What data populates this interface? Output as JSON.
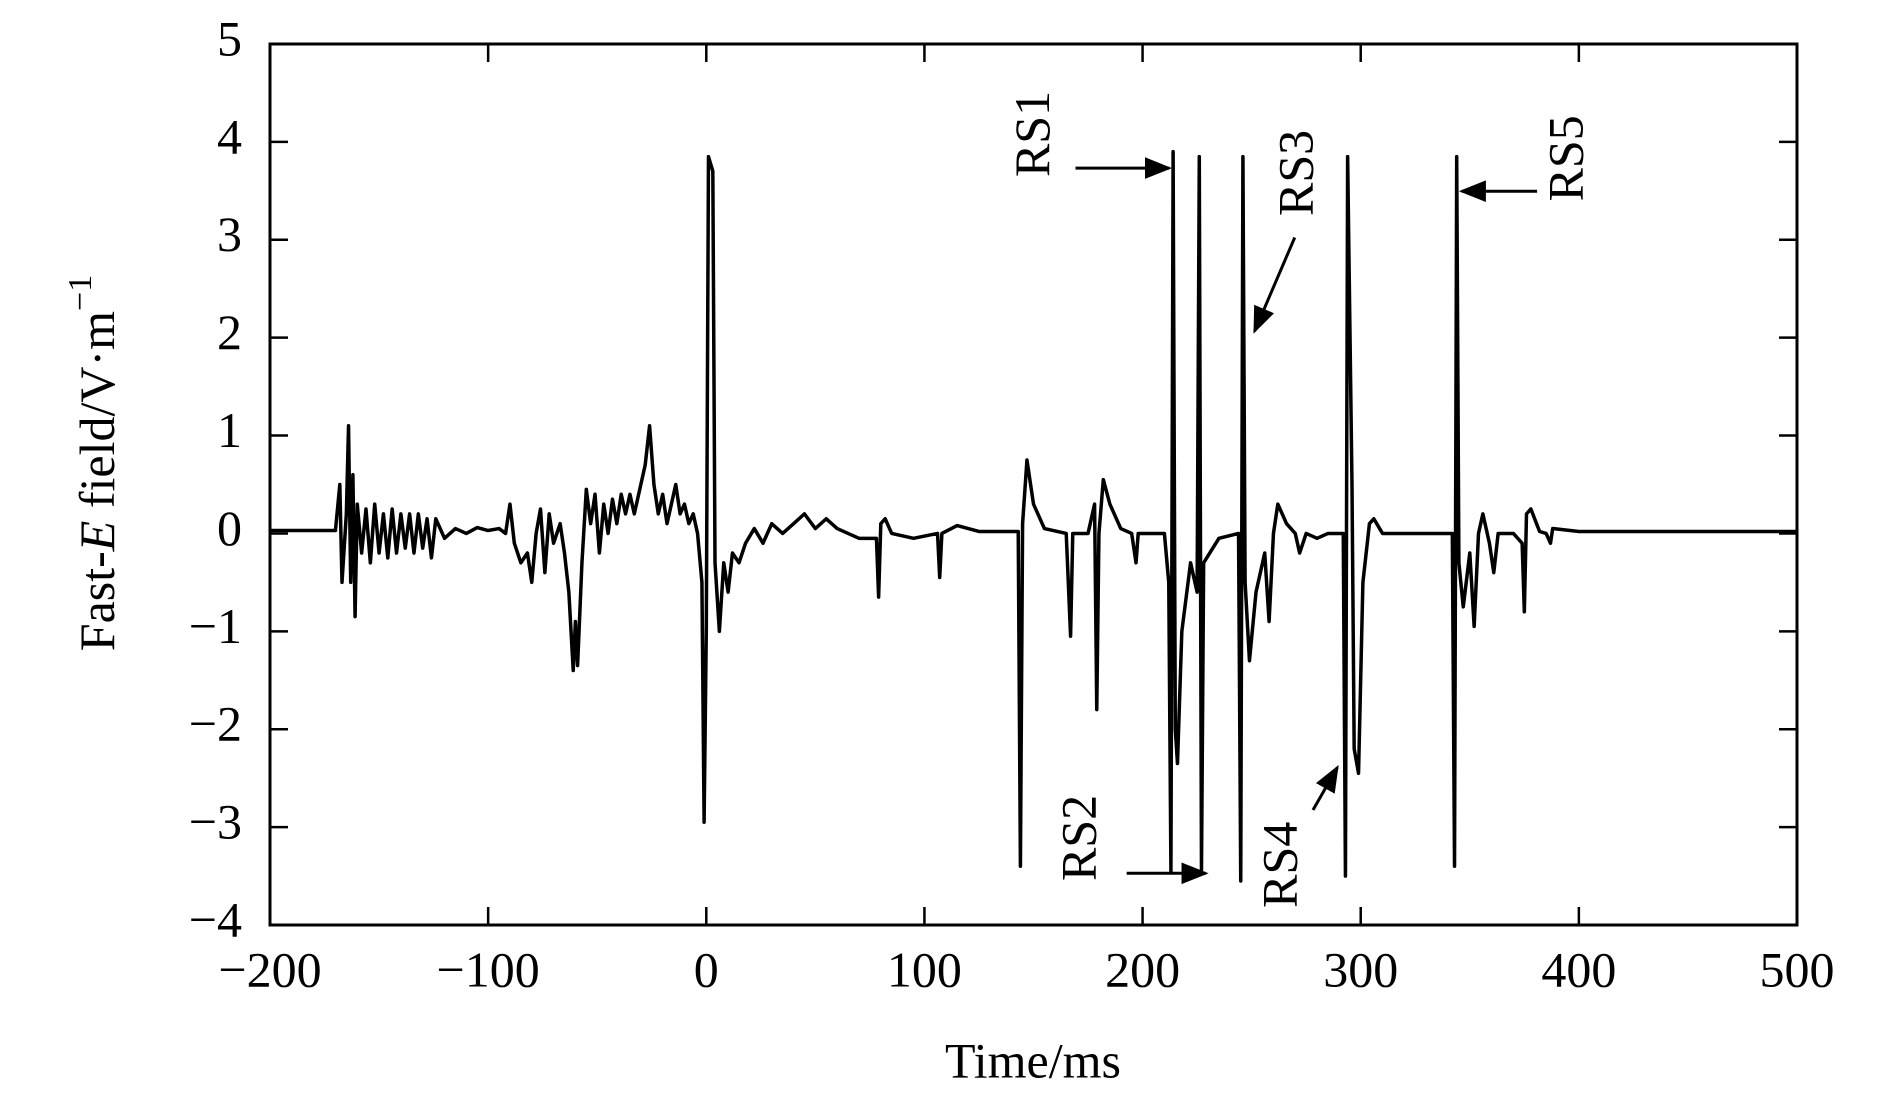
{
  "chart_data": {
    "type": "line",
    "xlabel": "Time/ms",
    "ylabel": [
      "Fast-",
      "E",
      " field/V·m",
      "−1"
    ],
    "color": "#000000",
    "grid": false,
    "xlim": [
      -200,
      500
    ],
    "ylim": [
      -4,
      5
    ],
    "xticks": [
      {
        "value": -200,
        "label": "−200"
      },
      {
        "value": -100,
        "label": "−100"
      },
      0,
      100,
      200,
      300,
      400,
      500
    ],
    "yticks": [
      {
        "value": -4,
        "label": "−4"
      },
      {
        "value": -3,
        "label": "−3"
      },
      {
        "value": -2,
        "label": "−2"
      },
      {
        "value": -1,
        "label": "−1"
      },
      0,
      1,
      2,
      3,
      4,
      5
    ],
    "annotations": [
      "RS1",
      "RS2",
      "RS3",
      "RS4",
      "RS5"
    ],
    "x": [
      -200,
      -170,
      -168,
      -167,
      -165,
      -164,
      -163,
      -162,
      -161,
      -160,
      -158,
      -156,
      -154,
      -152,
      -150,
      -148,
      -146,
      -144,
      -142,
      -140,
      -138,
      -136,
      -134,
      -132,
      -130,
      -128,
      -126,
      -124,
      -120,
      -115,
      -110,
      -105,
      -100,
      -95,
      -92,
      -90,
      -88,
      -85,
      -82,
      -80,
      -78,
      -76,
      -74,
      -72,
      -70,
      -67,
      -65,
      -63,
      -61,
      -60,
      -59,
      -57,
      -55,
      -53,
      -51,
      -49,
      -47,
      -45,
      -43,
      -41,
      -39,
      -37,
      -35,
      -33,
      -30,
      -28,
      -26,
      -24,
      -22,
      -20,
      -18,
      -16,
      -14,
      -12,
      -10,
      -8,
      -6,
      -4,
      -2,
      -1,
      0,
      1,
      3,
      4,
      6,
      8,
      10,
      12,
      15,
      18,
      22,
      26,
      30,
      35,
      40,
      45,
      50,
      55,
      60,
      70,
      78,
      79,
      80,
      82,
      85,
      95,
      106,
      107,
      108,
      115,
      125,
      143,
      144,
      145,
      147,
      150,
      155,
      165,
      167,
      168,
      175,
      178,
      179,
      180,
      182,
      185,
      190,
      195,
      197,
      198,
      210,
      212,
      213,
      214,
      215,
      216,
      218,
      222,
      225,
      226,
      227,
      228,
      235,
      244,
      245,
      246,
      247,
      249,
      252,
      256,
      258,
      260,
      262,
      266,
      270,
      272,
      275,
      280,
      285,
      292,
      293,
      294,
      296,
      297,
      299,
      301,
      304,
      306,
      310,
      330,
      342,
      343,
      344,
      345,
      347,
      350,
      352,
      354,
      356,
      359,
      361,
      363,
      370,
      374,
      375,
      376,
      378,
      382,
      385,
      387,
      388,
      400,
      500
    ],
    "values": [
      0.03,
      0.03,
      0.5,
      -0.5,
      0.2,
      1.1,
      -0.5,
      0.6,
      -0.85,
      0.3,
      -0.2,
      0.25,
      -0.3,
      0.3,
      -0.2,
      0.2,
      -0.25,
      0.25,
      -0.2,
      0.2,
      -0.15,
      0.2,
      -0.2,
      0.2,
      -0.15,
      0.15,
      -0.25,
      0.15,
      -0.05,
      0.05,
      0.0,
      0.06,
      0.03,
      0.05,
      0.0,
      0.3,
      -0.1,
      -0.3,
      -0.2,
      -0.5,
      0.0,
      0.25,
      -0.4,
      0.2,
      -0.1,
      0.1,
      -0.2,
      -0.6,
      -1.4,
      -0.9,
      -1.35,
      -0.3,
      0.45,
      0.1,
      0.4,
      -0.2,
      0.3,
      0.0,
      0.35,
      0.1,
      0.4,
      0.2,
      0.4,
      0.2,
      0.5,
      0.7,
      1.1,
      0.5,
      0.2,
      0.4,
      0.1,
      0.3,
      0.5,
      0.2,
      0.3,
      0.1,
      0.2,
      0.0,
      -0.5,
      -2.95,
      -1.0,
      3.85,
      3.7,
      -0.3,
      -1.0,
      -0.3,
      -0.6,
      -0.2,
      -0.3,
      -0.1,
      0.05,
      -0.1,
      0.1,
      0.0,
      0.1,
      0.2,
      0.05,
      0.15,
      0.05,
      -0.05,
      -0.05,
      -0.65,
      0.1,
      0.15,
      0.0,
      -0.05,
      0.0,
      -0.45,
      0.0,
      0.08,
      0.02,
      0.02,
      -3.4,
      0.1,
      0.75,
      0.3,
      0.05,
      0.0,
      -1.05,
      0.0,
      0.0,
      0.3,
      -1.8,
      0.0,
      0.55,
      0.3,
      0.05,
      0.0,
      -0.3,
      0.0,
      0.0,
      -0.5,
      -3.45,
      3.9,
      -2.0,
      -2.35,
      -1.0,
      -0.3,
      -0.6,
      3.85,
      -3.45,
      -0.3,
      -0.05,
      0.0,
      -3.55,
      3.85,
      -0.5,
      -1.3,
      -0.6,
      -0.2,
      -0.9,
      0.0,
      0.3,
      0.1,
      0.0,
      -0.2,
      0.0,
      -0.05,
      0.0,
      0.0,
      -3.5,
      3.85,
      0.5,
      -2.2,
      -2.45,
      -0.5,
      0.1,
      0.15,
      0.0,
      0.0,
      0.0,
      -3.4,
      3.85,
      -0.3,
      -0.75,
      -0.2,
      -0.95,
      0.0,
      0.2,
      -0.1,
      -0.4,
      0.0,
      0.0,
      -0.1,
      -0.8,
      0.2,
      0.25,
      0.02,
      0.0,
      -0.1,
      0.05,
      0.02,
      0.02
    ]
  }
}
